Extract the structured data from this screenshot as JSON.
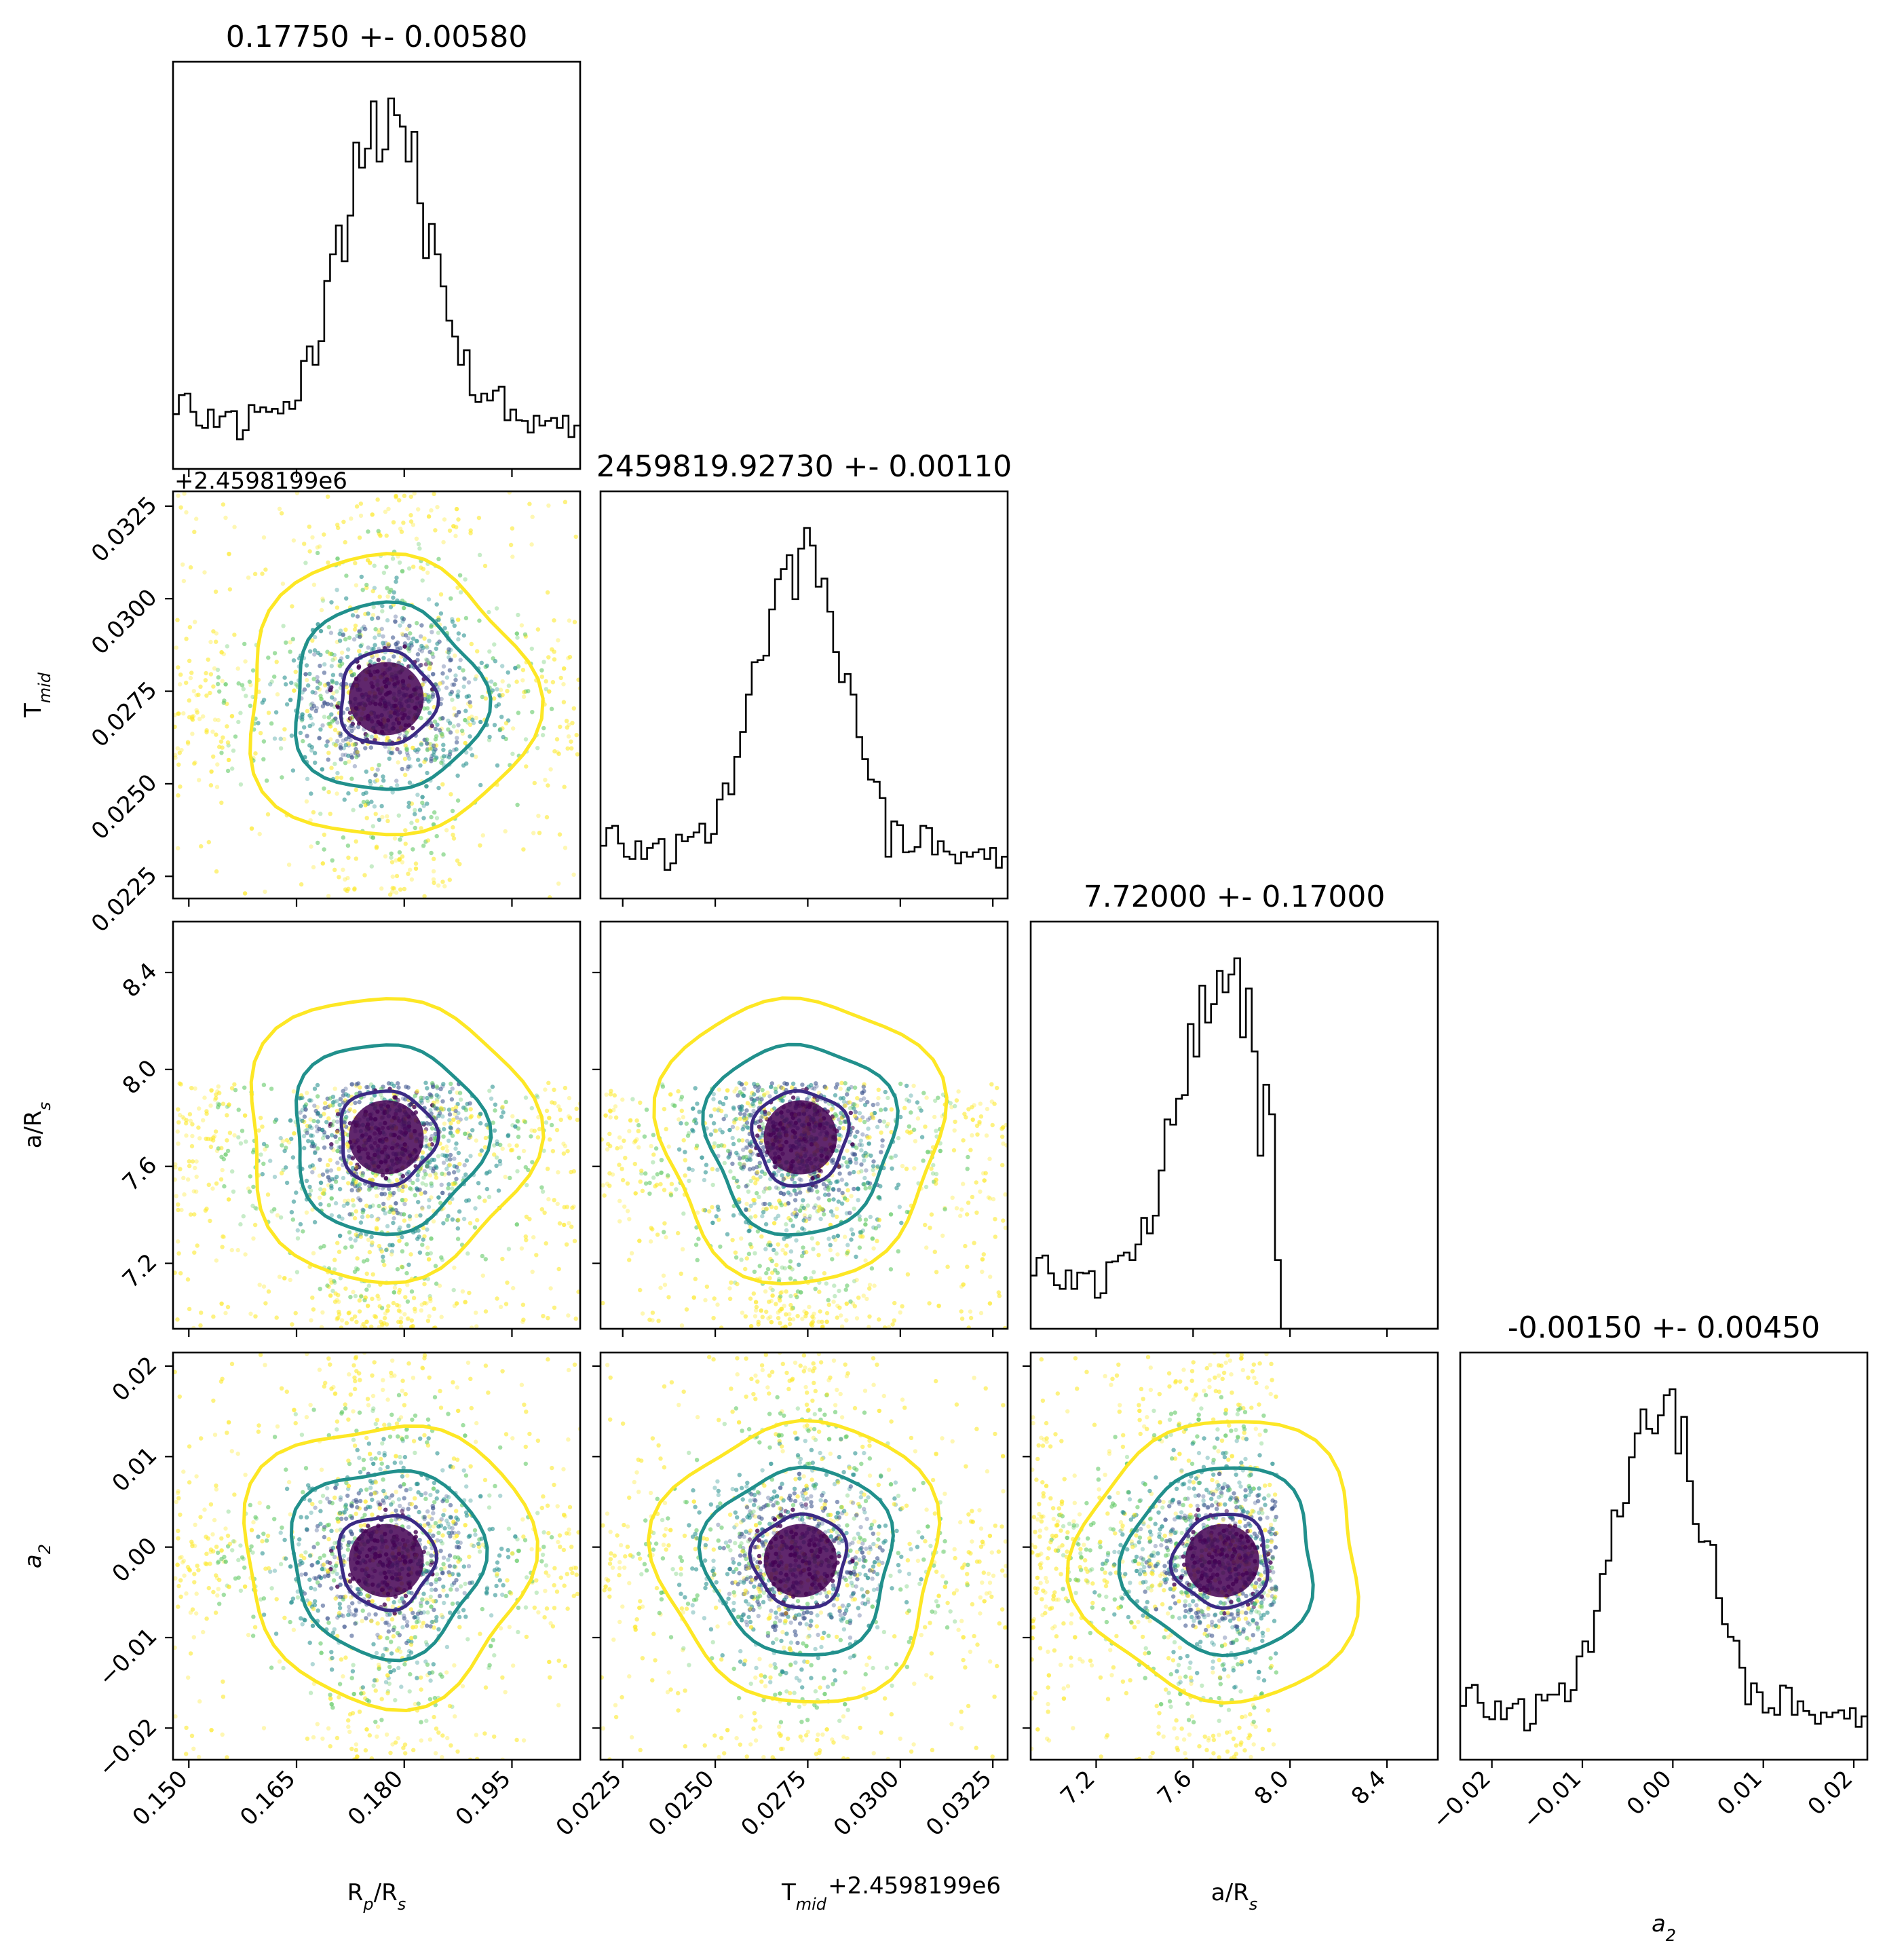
{
  "colors": {
    "contour_1sigma": "#3b2a84",
    "contour_2sigma": "#21908c",
    "contour_3sigma": "#fde725",
    "hist_line": "#000000"
  },
  "chart_data": {
    "type": "corner",
    "parameters": [
      {
        "key": "rp",
        "label_main": "R",
        "label_sub_1": "p",
        "label_mid": "/R",
        "label_sub_2": "s",
        "title": "0.17750 +- 0.00580",
        "range": [
          0.1478,
          0.2045
        ],
        "ticks": [
          0.15,
          0.165,
          0.18,
          0.195
        ],
        "tick_labels": [
          "0.150",
          "0.165",
          "0.180",
          "0.195"
        ],
        "center": 0.1775,
        "sigma": 0.0058
      },
      {
        "key": "tmid",
        "label_main": "T",
        "label_sub_1": "mid",
        "label_mid": "",
        "label_sub_2": "",
        "title": "2459819.92730 +- 0.00110",
        "offset_text": "+2.4598199e6",
        "range": [
          0.0219,
          0.0329
        ],
        "ticks": [
          0.0225,
          0.025,
          0.0275,
          0.03,
          0.0325
        ],
        "tick_labels": [
          "0.0225",
          "0.0250",
          "0.0275",
          "0.0300",
          "0.0325"
        ],
        "center": 0.0273,
        "sigma": 0.0011
      },
      {
        "key": "ars",
        "label_main": "a/R",
        "label_sub_1": "s",
        "label_mid": "",
        "label_sub_2": "",
        "title": "7.72000 +- 0.17000",
        "range": [
          6.93,
          8.61
        ],
        "cutoff": 7.945,
        "ticks": [
          7.2,
          7.6,
          8.0,
          8.4
        ],
        "tick_labels": [
          "7.2",
          "7.6",
          "8.0",
          "8.4"
        ],
        "center": 7.72,
        "sigma": 0.17
      },
      {
        "key": "a2",
        "label_main": "a",
        "label_sub_1": "2",
        "label_mid": "",
        "label_sub_2": "",
        "label_italic": true,
        "title": "-0.00150 +- 0.00450",
        "range": [
          -0.0235,
          0.0215
        ],
        "ticks": [
          -0.02,
          -0.01,
          0.0,
          0.01,
          0.02
        ],
        "tick_labels": [
          "−0.02",
          "−0.01",
          "0.00",
          "0.01",
          "0.02"
        ],
        "center": -0.0015,
        "sigma": 0.0045
      }
    ],
    "histogram_peak_density_rel": {
      "rp": 1.0,
      "tmid": 1.0,
      "ars": 1.0,
      "a2": 1.0
    },
    "contour_levels_sigma": [
      1,
      2,
      3
    ],
    "grid": false,
    "legend": "none"
  }
}
